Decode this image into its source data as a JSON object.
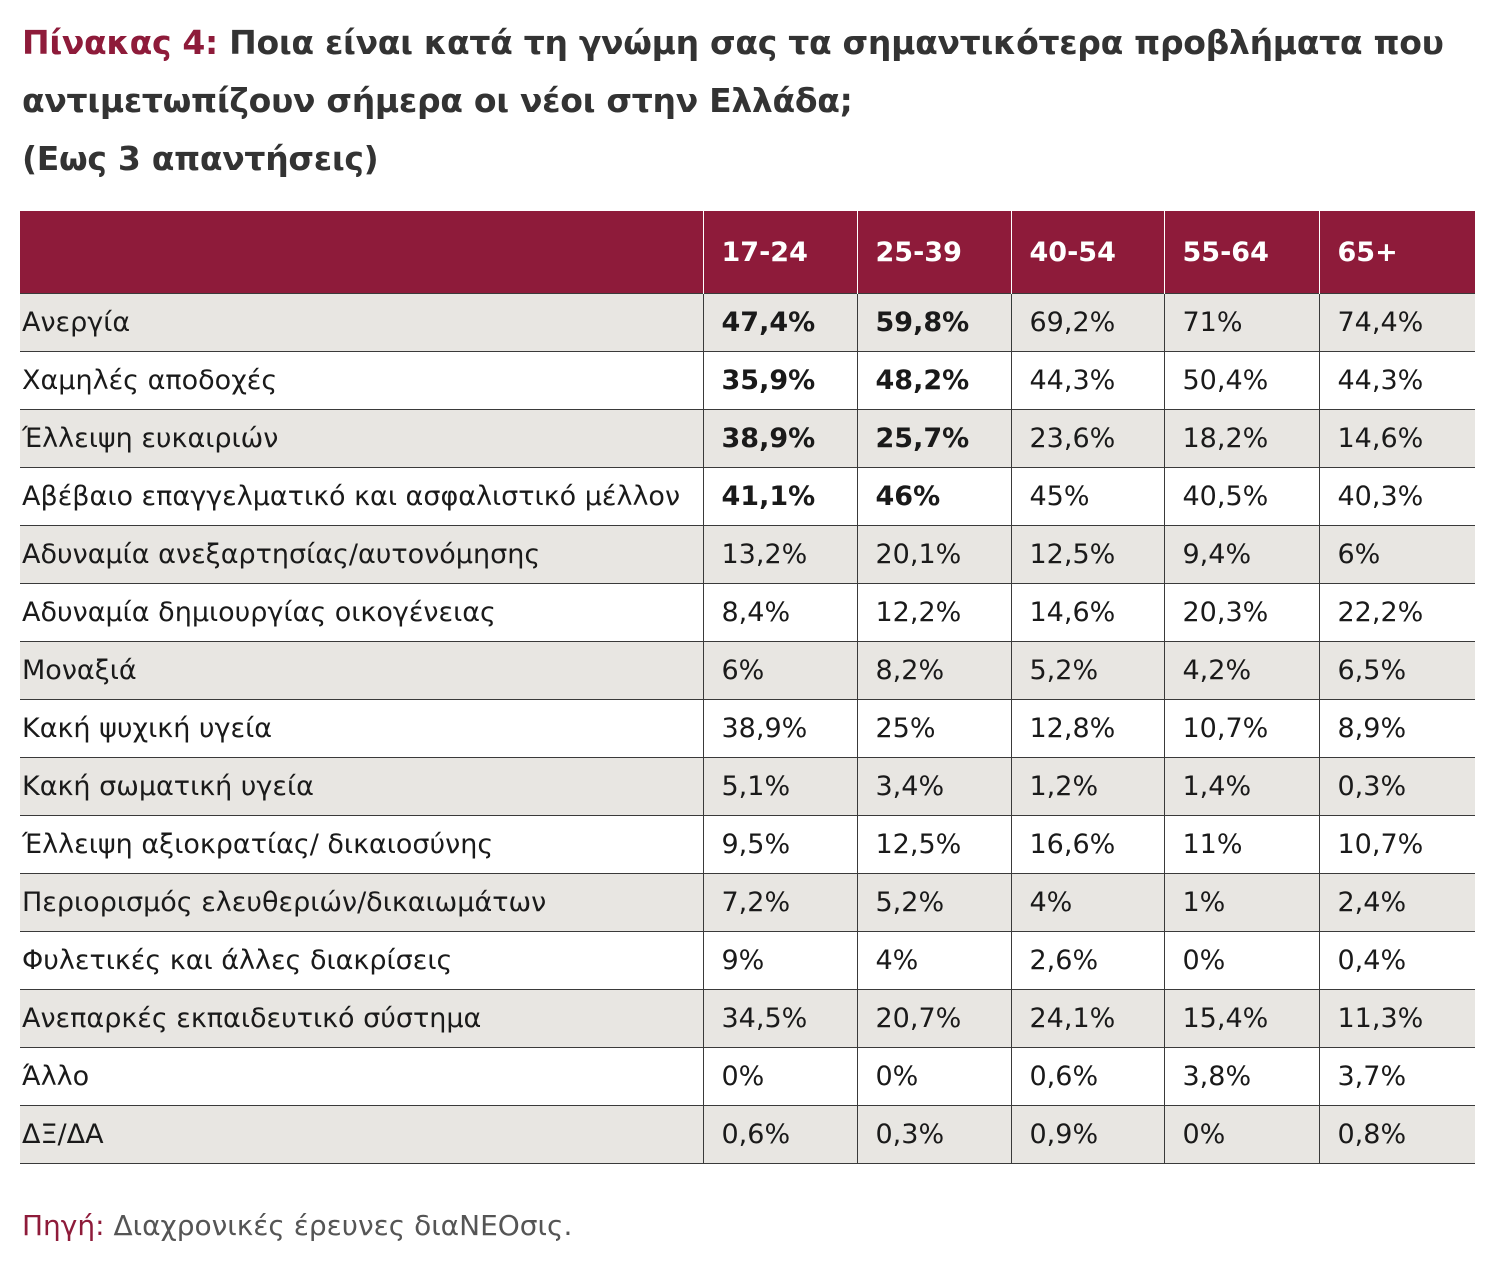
{
  "title": {
    "prefix": "Πίνακας 4:",
    "line1": "Ποια είναι κατά τη γνώμη σας τα σημαντικότερα προβλήματα που",
    "line2": "αντιμετωπίζουν σήμερα οι νέοι στην Ελλάδα;",
    "line3": "(Εως 3 απαντήσεις)"
  },
  "colors": {
    "accent": "#8e1b3a",
    "stripe": "#e8e6e2"
  },
  "table": {
    "headers": [
      "",
      "17-24",
      "25-39",
      "40-54",
      "55-64",
      "65+"
    ],
    "rows": [
      {
        "label": "Ανεργία",
        "values": [
          "47,4%",
          "59,8%",
          "69,2%",
          "71%",
          "74,4%"
        ],
        "bold": [
          true,
          true,
          false,
          false,
          false
        ]
      },
      {
        "label": "Χαμηλές αποδοχές",
        "values": [
          "35,9%",
          "48,2%",
          "44,3%",
          "50,4%",
          "44,3%"
        ],
        "bold": [
          true,
          true,
          false,
          false,
          false
        ]
      },
      {
        "label": "Έλλειψη ευκαιριών",
        "values": [
          "38,9%",
          "25,7%",
          "23,6%",
          "18,2%",
          "14,6%"
        ],
        "bold": [
          true,
          true,
          false,
          false,
          false
        ]
      },
      {
        "label": "Αβέβαιο επαγγελματικό και ασφαλιστικό μέλλον",
        "values": [
          "41,1%",
          "46%",
          "45%",
          "40,5%",
          "40,3%"
        ],
        "bold": [
          true,
          true,
          false,
          false,
          false
        ]
      },
      {
        "label": "Αδυναμία ανεξαρτησίας/αυτονόμησης",
        "values": [
          "13,2%",
          "20,1%",
          "12,5%",
          "9,4%",
          "6%"
        ],
        "bold": [
          false,
          false,
          false,
          false,
          false
        ]
      },
      {
        "label": "Αδυναμία δημιουργίας οικογένειας",
        "values": [
          "8,4%",
          "12,2%",
          "14,6%",
          "20,3%",
          "22,2%"
        ],
        "bold": [
          false,
          false,
          false,
          false,
          false
        ]
      },
      {
        "label": "Μοναξιά",
        "values": [
          "6%",
          "8,2%",
          "5,2%",
          "4,2%",
          "6,5%"
        ],
        "bold": [
          false,
          false,
          false,
          false,
          false
        ]
      },
      {
        "label": "Κακή ψυχική υγεία",
        "values": [
          "38,9%",
          "25%",
          "12,8%",
          "10,7%",
          "8,9%"
        ],
        "bold": [
          false,
          false,
          false,
          false,
          false
        ]
      },
      {
        "label": "Κακή σωματική υγεία",
        "values": [
          "5,1%",
          "3,4%",
          "1,2%",
          "1,4%",
          "0,3%"
        ],
        "bold": [
          false,
          false,
          false,
          false,
          false
        ]
      },
      {
        "label": "Έλλειψη αξιοκρατίας/ δικαιοσύνης",
        "values": [
          "9,5%",
          "12,5%",
          "16,6%",
          "11%",
          "10,7%"
        ],
        "bold": [
          false,
          false,
          false,
          false,
          false
        ]
      },
      {
        "label": "Περιορισμός ελευθεριών/δικαιωμάτων",
        "values": [
          "7,2%",
          "5,2%",
          "4%",
          "1%",
          "2,4%"
        ],
        "bold": [
          false,
          false,
          false,
          false,
          false
        ]
      },
      {
        "label": "Φυλετικές και άλλες διακρίσεις",
        "values": [
          "9%",
          "4%",
          "2,6%",
          "0%",
          "0,4%"
        ],
        "bold": [
          false,
          false,
          false,
          false,
          false
        ]
      },
      {
        "label": "Ανεπαρκές εκπαιδευτικό σύστημα",
        "values": [
          "34,5%",
          "20,7%",
          "24,1%",
          "15,4%",
          "11,3%"
        ],
        "bold": [
          false,
          false,
          false,
          false,
          false
        ]
      },
      {
        "label": "Άλλο",
        "values": [
          "0%",
          "0%",
          "0,6%",
          "3,8%",
          "3,7%"
        ],
        "bold": [
          false,
          false,
          false,
          false,
          false
        ]
      },
      {
        "label": "ΔΞ/ΔΑ",
        "values": [
          "0,6%",
          "0,3%",
          "0,9%",
          "0%",
          "0,8%"
        ],
        "bold": [
          false,
          false,
          false,
          false,
          false
        ]
      }
    ]
  },
  "source": {
    "label": "Πηγή:",
    "text": "Διαχρονικές έρευνες διαNEOσις."
  }
}
